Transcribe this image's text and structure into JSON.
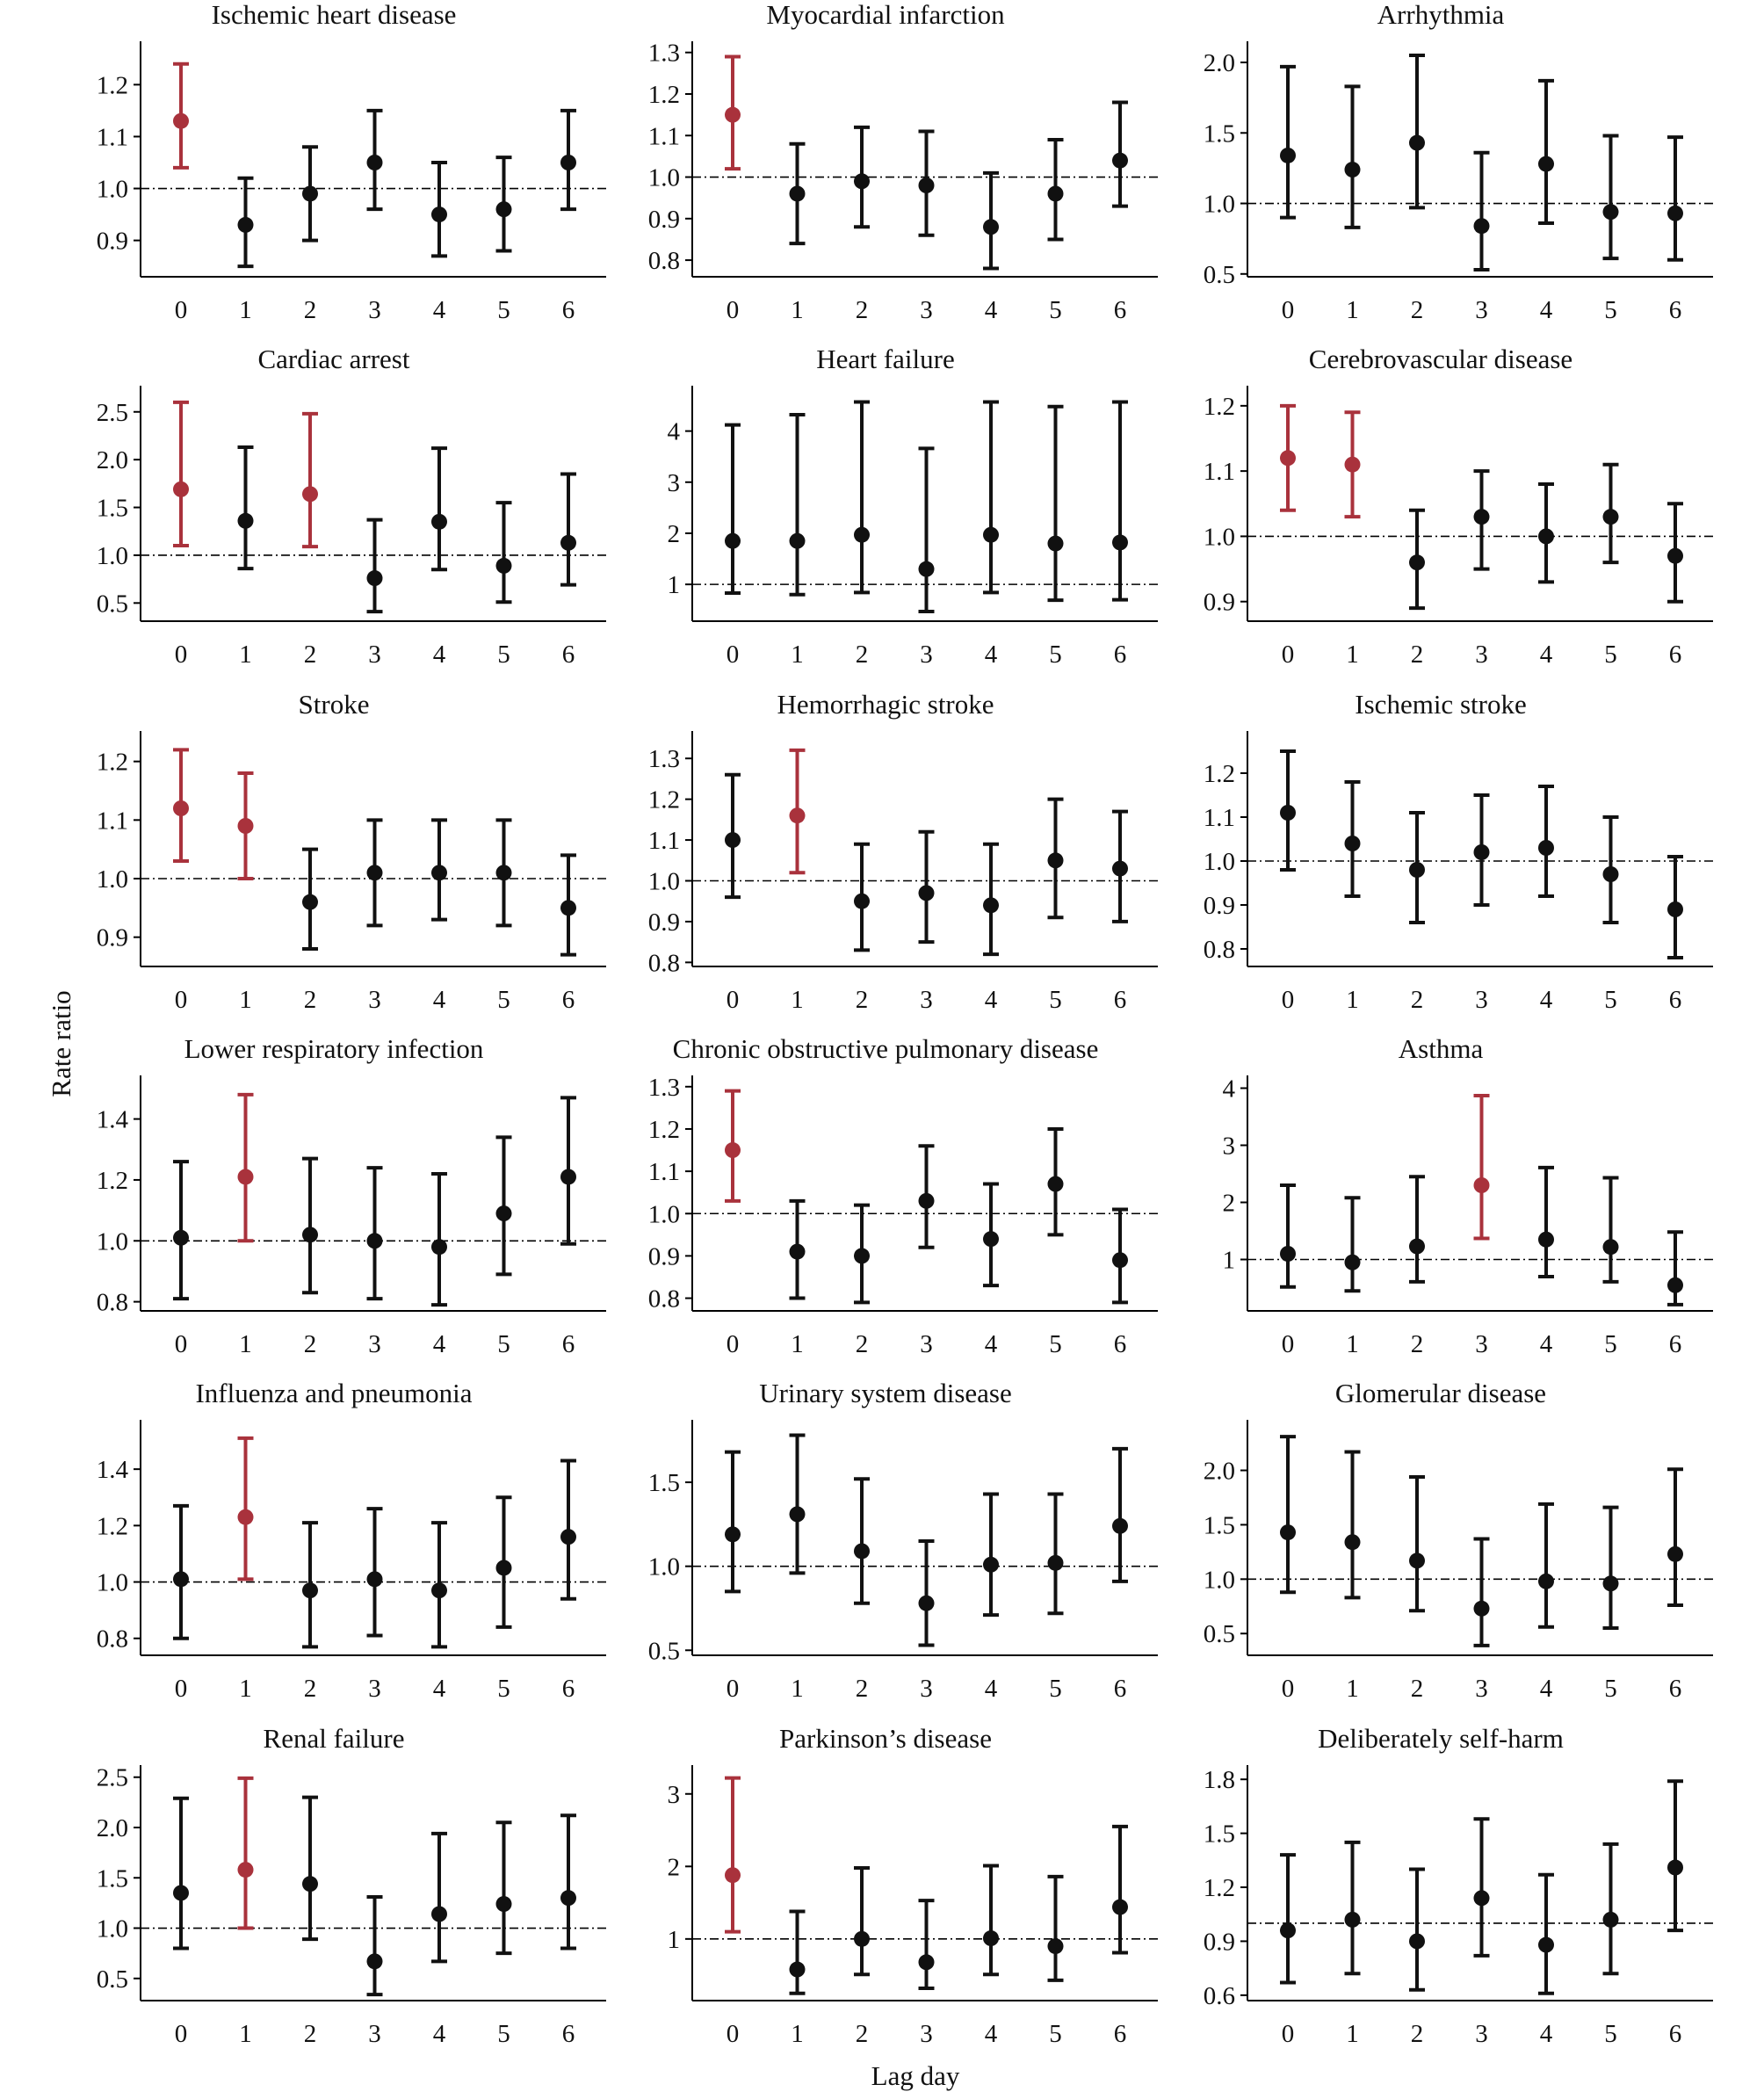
{
  "figure": {
    "xlabel": "Lag day",
    "ylabel": "Rate ratio",
    "colors": {
      "significant": "#a9323c",
      "normal": "#111111"
    }
  },
  "chart_data": [
    {
      "type": "scatter",
      "title": "Ischemic heart disease",
      "categories": [
        "0",
        "1",
        "2",
        "3",
        "4",
        "5",
        "6"
      ],
      "values": [
        1.13,
        0.93,
        0.99,
        1.05,
        0.95,
        0.96,
        1.05
      ],
      "lower": [
        1.04,
        0.85,
        0.9,
        0.96,
        0.87,
        0.88,
        0.96
      ],
      "upper": [
        1.24,
        1.02,
        1.08,
        1.15,
        1.05,
        1.06,
        1.15
      ],
      "significant": [
        true,
        false,
        false,
        false,
        false,
        false,
        false
      ],
      "reference": 1.0,
      "ylim": [
        0.83,
        1.27
      ],
      "yticks": [
        "0.9",
        "1.0",
        "1.1",
        "1.2"
      ]
    },
    {
      "type": "scatter",
      "title": "Myocardial infarction",
      "categories": [
        "0",
        "1",
        "2",
        "3",
        "4",
        "5",
        "6"
      ],
      "values": [
        1.15,
        0.96,
        0.99,
        0.98,
        0.88,
        0.96,
        1.04
      ],
      "lower": [
        1.02,
        0.84,
        0.88,
        0.86,
        0.78,
        0.85,
        0.93
      ],
      "upper": [
        1.29,
        1.08,
        1.12,
        1.11,
        1.01,
        1.09,
        1.18
      ],
      "significant": [
        true,
        false,
        false,
        false,
        false,
        false,
        false
      ],
      "reference": 1.0,
      "ylim": [
        0.76,
        1.31
      ],
      "yticks": [
        "0.8",
        "0.9",
        "1.0",
        "1.1",
        "1.2",
        "1.3"
      ]
    },
    {
      "type": "scatter",
      "title": "Arrhythmia",
      "categories": [
        "0",
        "1",
        "2",
        "3",
        "4",
        "5",
        "6"
      ],
      "values": [
        1.34,
        1.24,
        1.43,
        0.84,
        1.28,
        0.94,
        0.93
      ],
      "lower": [
        0.9,
        0.83,
        0.97,
        0.53,
        0.86,
        0.61,
        0.6
      ],
      "upper": [
        1.97,
        1.83,
        2.05,
        1.36,
        1.87,
        1.48,
        1.47
      ],
      "significant": [
        false,
        false,
        false,
        false,
        false,
        false,
        false
      ],
      "reference": 1.0,
      "ylim": [
        0.48,
        2.1
      ],
      "yticks": [
        "0.5",
        "1.0",
        "1.5",
        "2.0"
      ]
    },
    {
      "type": "scatter",
      "title": "Cardiac arrest",
      "categories": [
        "0",
        "1",
        "2",
        "3",
        "4",
        "5",
        "6"
      ],
      "values": [
        1.69,
        1.36,
        1.64,
        0.76,
        1.35,
        0.89,
        1.13
      ],
      "lower": [
        1.1,
        0.86,
        1.09,
        0.41,
        0.85,
        0.51,
        0.69
      ],
      "upper": [
        2.6,
        2.13,
        2.48,
        1.37,
        2.12,
        1.55,
        1.85
      ],
      "significant": [
        true,
        false,
        true,
        false,
        false,
        false,
        false
      ],
      "reference": 1.0,
      "ylim": [
        0.31,
        2.7
      ],
      "yticks": [
        "0.5",
        "1.0",
        "1.5",
        "2.0",
        "2.5"
      ]
    },
    {
      "type": "scatter",
      "title": "Heart failure",
      "categories": [
        "0",
        "1",
        "2",
        "3",
        "4",
        "5",
        "6"
      ],
      "values": [
        1.85,
        1.85,
        1.97,
        1.3,
        1.97,
        1.8,
        1.82
      ],
      "lower": [
        0.83,
        0.8,
        0.84,
        0.47,
        0.84,
        0.69,
        0.7
      ],
      "upper": [
        4.12,
        4.32,
        4.57,
        3.66,
        4.57,
        4.48,
        4.57
      ],
      "significant": [
        false,
        false,
        false,
        false,
        false,
        false,
        false
      ],
      "reference": 1.0,
      "ylim": [
        0.28,
        4.75
      ],
      "yticks": [
        "1",
        "2",
        "3",
        "4"
      ]
    },
    {
      "type": "scatter",
      "title": "Cerebrovascular disease",
      "categories": [
        "0",
        "1",
        "2",
        "3",
        "4",
        "5",
        "6"
      ],
      "values": [
        1.12,
        1.11,
        0.96,
        1.03,
        1.0,
        1.03,
        0.97
      ],
      "lower": [
        1.04,
        1.03,
        0.89,
        0.95,
        0.93,
        0.96,
        0.9
      ],
      "upper": [
        1.2,
        1.19,
        1.04,
        1.1,
        1.08,
        1.11,
        1.05
      ],
      "significant": [
        true,
        true,
        false,
        false,
        false,
        false,
        false
      ],
      "reference": 1.0,
      "ylim": [
        0.87,
        1.22
      ],
      "yticks": [
        "0.9",
        "1.0",
        "1.1",
        "1.2"
      ]
    },
    {
      "type": "scatter",
      "title": "Stroke",
      "categories": [
        "0",
        "1",
        "2",
        "3",
        "4",
        "5",
        "6"
      ],
      "values": [
        1.12,
        1.09,
        0.96,
        1.01,
        1.01,
        1.01,
        0.95
      ],
      "lower": [
        1.03,
        1.0,
        0.88,
        0.92,
        0.93,
        0.92,
        0.87
      ],
      "upper": [
        1.22,
        1.18,
        1.05,
        1.1,
        1.1,
        1.1,
        1.04
      ],
      "significant": [
        true,
        true,
        false,
        false,
        false,
        false,
        false
      ],
      "reference": 1.0,
      "ylim": [
        0.85,
        1.24
      ],
      "yticks": [
        "0.9",
        "1.0",
        "1.1",
        "1.2"
      ]
    },
    {
      "type": "scatter",
      "title": "Hemorrhagic stroke",
      "categories": [
        "0",
        "1",
        "2",
        "3",
        "4",
        "5",
        "6"
      ],
      "values": [
        1.1,
        1.16,
        0.95,
        0.97,
        0.94,
        1.05,
        1.03
      ],
      "lower": [
        0.96,
        1.02,
        0.83,
        0.85,
        0.82,
        0.91,
        0.9
      ],
      "upper": [
        1.26,
        1.32,
        1.09,
        1.12,
        1.09,
        1.2,
        1.17
      ],
      "significant": [
        false,
        true,
        false,
        false,
        false,
        false,
        false
      ],
      "reference": 1.0,
      "ylim": [
        0.79,
        1.35
      ],
      "yticks": [
        "0.8",
        "0.9",
        "1.0",
        "1.1",
        "1.2",
        "1.3"
      ]
    },
    {
      "type": "scatter",
      "title": "Ischemic stroke",
      "categories": [
        "0",
        "1",
        "2",
        "3",
        "4",
        "5",
        "6"
      ],
      "values": [
        1.11,
        1.04,
        0.98,
        1.02,
        1.03,
        0.97,
        0.89
      ],
      "lower": [
        0.98,
        0.92,
        0.86,
        0.9,
        0.92,
        0.86,
        0.78
      ],
      "upper": [
        1.25,
        1.18,
        1.11,
        1.15,
        1.17,
        1.1,
        1.01
      ],
      "significant": [
        false,
        false,
        false,
        false,
        false,
        false,
        false
      ],
      "reference": 1.0,
      "ylim": [
        0.76,
        1.28
      ],
      "yticks": [
        "0.8",
        "0.9",
        "1.0",
        "1.1",
        "1.2"
      ]
    },
    {
      "type": "scatter",
      "title": "Lower respiratory infection",
      "categories": [
        "0",
        "1",
        "2",
        "3",
        "4",
        "5",
        "6"
      ],
      "values": [
        1.01,
        1.21,
        1.02,
        1.0,
        0.98,
        1.09,
        1.21
      ],
      "lower": [
        0.81,
        1.0,
        0.83,
        0.81,
        0.79,
        0.89,
        0.99
      ],
      "upper": [
        1.26,
        1.48,
        1.27,
        1.24,
        1.22,
        1.34,
        1.47
      ],
      "significant": [
        false,
        true,
        false,
        false,
        false,
        false,
        false
      ],
      "reference": 1.0,
      "ylim": [
        0.77,
        1.52
      ],
      "yticks": [
        "0.8",
        "1.0",
        "1.2",
        "1.4"
      ]
    },
    {
      "type": "scatter",
      "title": "Chronic obstructive pulmonary disease",
      "categories": [
        "0",
        "1",
        "2",
        "3",
        "4",
        "5",
        "6"
      ],
      "values": [
        1.15,
        0.91,
        0.9,
        1.03,
        0.94,
        1.07,
        0.89
      ],
      "lower": [
        1.03,
        0.8,
        0.79,
        0.92,
        0.83,
        0.95,
        0.79
      ],
      "upper": [
        1.29,
        1.03,
        1.02,
        1.16,
        1.07,
        1.2,
        1.01
      ],
      "significant": [
        true,
        false,
        false,
        false,
        false,
        false,
        false
      ],
      "reference": 1.0,
      "ylim": [
        0.77,
        1.31
      ],
      "yticks": [
        "0.8",
        "0.9",
        "1.0",
        "1.1",
        "1.2",
        "1.3"
      ]
    },
    {
      "type": "scatter",
      "title": "Asthma",
      "categories": [
        "0",
        "1",
        "2",
        "3",
        "4",
        "5",
        "6"
      ],
      "values": [
        1.1,
        0.95,
        1.23,
        2.3,
        1.35,
        1.22,
        0.55
      ],
      "lower": [
        0.52,
        0.45,
        0.61,
        1.37,
        0.7,
        0.61,
        0.21
      ],
      "upper": [
        2.3,
        2.08,
        2.45,
        3.87,
        2.61,
        2.43,
        1.48
      ],
      "significant": [
        false,
        false,
        false,
        true,
        false,
        false,
        false
      ],
      "reference": 1.0,
      "ylim": [
        0.1,
        4.1
      ],
      "yticks": [
        "1",
        "2",
        "3",
        "4"
      ]
    },
    {
      "type": "scatter",
      "title": "Influenza and pneumonia",
      "categories": [
        "0",
        "1",
        "2",
        "3",
        "4",
        "5",
        "6"
      ],
      "values": [
        1.01,
        1.23,
        0.97,
        1.01,
        0.97,
        1.05,
        1.16
      ],
      "lower": [
        0.8,
        1.01,
        0.77,
        0.81,
        0.77,
        0.84,
        0.94
      ],
      "upper": [
        1.27,
        1.51,
        1.21,
        1.26,
        1.21,
        1.3,
        1.43
      ],
      "significant": [
        false,
        true,
        false,
        false,
        false,
        false,
        false
      ],
      "reference": 1.0,
      "ylim": [
        0.74,
        1.55
      ],
      "yticks": [
        "0.8",
        "1.0",
        "1.2",
        "1.4"
      ]
    },
    {
      "type": "scatter",
      "title": "Urinary system disease",
      "categories": [
        "0",
        "1",
        "2",
        "3",
        "4",
        "5",
        "6"
      ],
      "values": [
        1.19,
        1.31,
        1.09,
        0.78,
        1.01,
        1.02,
        1.24
      ],
      "lower": [
        0.85,
        0.96,
        0.78,
        0.53,
        0.71,
        0.72,
        0.91
      ],
      "upper": [
        1.68,
        1.78,
        1.52,
        1.15,
        1.43,
        1.43,
        1.7
      ],
      "significant": [
        false,
        false,
        false,
        false,
        false,
        false,
        false
      ],
      "reference": 1.0,
      "ylim": [
        0.47,
        1.83
      ],
      "yticks": [
        "0.5",
        "1.0",
        "1.5"
      ]
    },
    {
      "type": "scatter",
      "title": "Glomerular disease",
      "categories": [
        "0",
        "1",
        "2",
        "3",
        "4",
        "5",
        "6"
      ],
      "values": [
        1.43,
        1.34,
        1.17,
        0.73,
        0.98,
        0.96,
        1.23
      ],
      "lower": [
        0.88,
        0.83,
        0.71,
        0.39,
        0.56,
        0.55,
        0.76
      ],
      "upper": [
        2.31,
        2.17,
        1.94,
        1.37,
        1.69,
        1.66,
        2.01
      ],
      "significant": [
        false,
        false,
        false,
        false,
        false,
        false,
        false
      ],
      "reference": 1.0,
      "ylim": [
        0.3,
        2.4
      ],
      "yticks": [
        "0.5",
        "1.0",
        "1.5",
        "2.0"
      ]
    },
    {
      "type": "scatter",
      "title": "Renal failure",
      "categories": [
        "0",
        "1",
        "2",
        "3",
        "4",
        "5",
        "6"
      ],
      "values": [
        1.35,
        1.58,
        1.44,
        0.67,
        1.14,
        1.24,
        1.3
      ],
      "lower": [
        0.8,
        1.0,
        0.89,
        0.34,
        0.67,
        0.75,
        0.8
      ],
      "upper": [
        2.29,
        2.49,
        2.3,
        1.31,
        1.94,
        2.05,
        2.12
      ],
      "significant": [
        false,
        true,
        false,
        false,
        false,
        false,
        false
      ],
      "reference": 1.0,
      "ylim": [
        0.28,
        2.55
      ],
      "yticks": [
        "0.5",
        "1.0",
        "1.5",
        "2.0",
        "2.5"
      ]
    },
    {
      "type": "scatter",
      "title": "Parkinson’s disease",
      "categories": [
        "0",
        "1",
        "2",
        "3",
        "4",
        "5",
        "6"
      ],
      "values": [
        1.88,
        0.58,
        1.0,
        0.68,
        1.01,
        0.9,
        1.44
      ],
      "lower": [
        1.1,
        0.25,
        0.51,
        0.32,
        0.51,
        0.43,
        0.81
      ],
      "upper": [
        3.22,
        1.38,
        1.98,
        1.53,
        2.01,
        1.86,
        2.55
      ],
      "significant": [
        true,
        false,
        false,
        false,
        false,
        false,
        false
      ],
      "reference": 1.0,
      "ylim": [
        0.15,
        3.3
      ],
      "yticks": [
        "1",
        "2",
        "3"
      ]
    },
    {
      "type": "scatter",
      "title": "Deliberately self-harm",
      "categories": [
        "0",
        "1",
        "2",
        "3",
        "4",
        "5",
        "6"
      ],
      "values": [
        0.96,
        1.02,
        0.9,
        1.14,
        0.88,
        1.02,
        1.31
      ],
      "lower": [
        0.67,
        0.72,
        0.63,
        0.82,
        0.61,
        0.72,
        0.96
      ],
      "upper": [
        1.38,
        1.45,
        1.3,
        1.58,
        1.27,
        1.44,
        1.79
      ],
      "significant": [
        false,
        false,
        false,
        false,
        false,
        false,
        false
      ],
      "reference": 1.0,
      "ylim": [
        0.57,
        1.84
      ],
      "yticks": [
        "0.6",
        "0.9",
        "1.2",
        "1.5",
        "1.8"
      ]
    }
  ]
}
